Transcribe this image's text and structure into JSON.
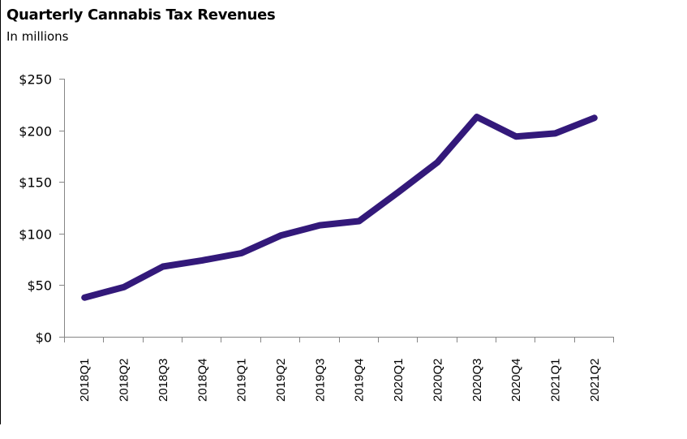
{
  "chart_data": {
    "type": "line",
    "title": "Quarterly Cannabis Tax Revenues",
    "subtitle": "In millions",
    "xlabel": "",
    "ylabel": "",
    "categories": [
      "2018Q1",
      "2018Q2",
      "2018Q3",
      "2018Q4",
      "2019Q1",
      "2019Q2",
      "2019Q3",
      "2019Q4",
      "2020Q1",
      "2020Q2",
      "2020Q3",
      "2020Q4",
      "2021Q1",
      "2021Q2"
    ],
    "series": [
      {
        "name": "Cannabis Tax Revenue",
        "color": "#33197a",
        "values": [
          38,
          48,
          68,
          74,
          81,
          98,
          108,
          112,
          140,
          169,
          213,
          194,
          197,
          212
        ]
      }
    ],
    "ylim": [
      0,
      250
    ],
    "yticks": [
      0,
      50,
      100,
      150,
      200,
      250
    ],
    "ytick_labels": [
      "$0",
      "$50",
      "$100",
      "$150",
      "$200",
      "$250"
    ],
    "grid": false,
    "legend": "none"
  }
}
